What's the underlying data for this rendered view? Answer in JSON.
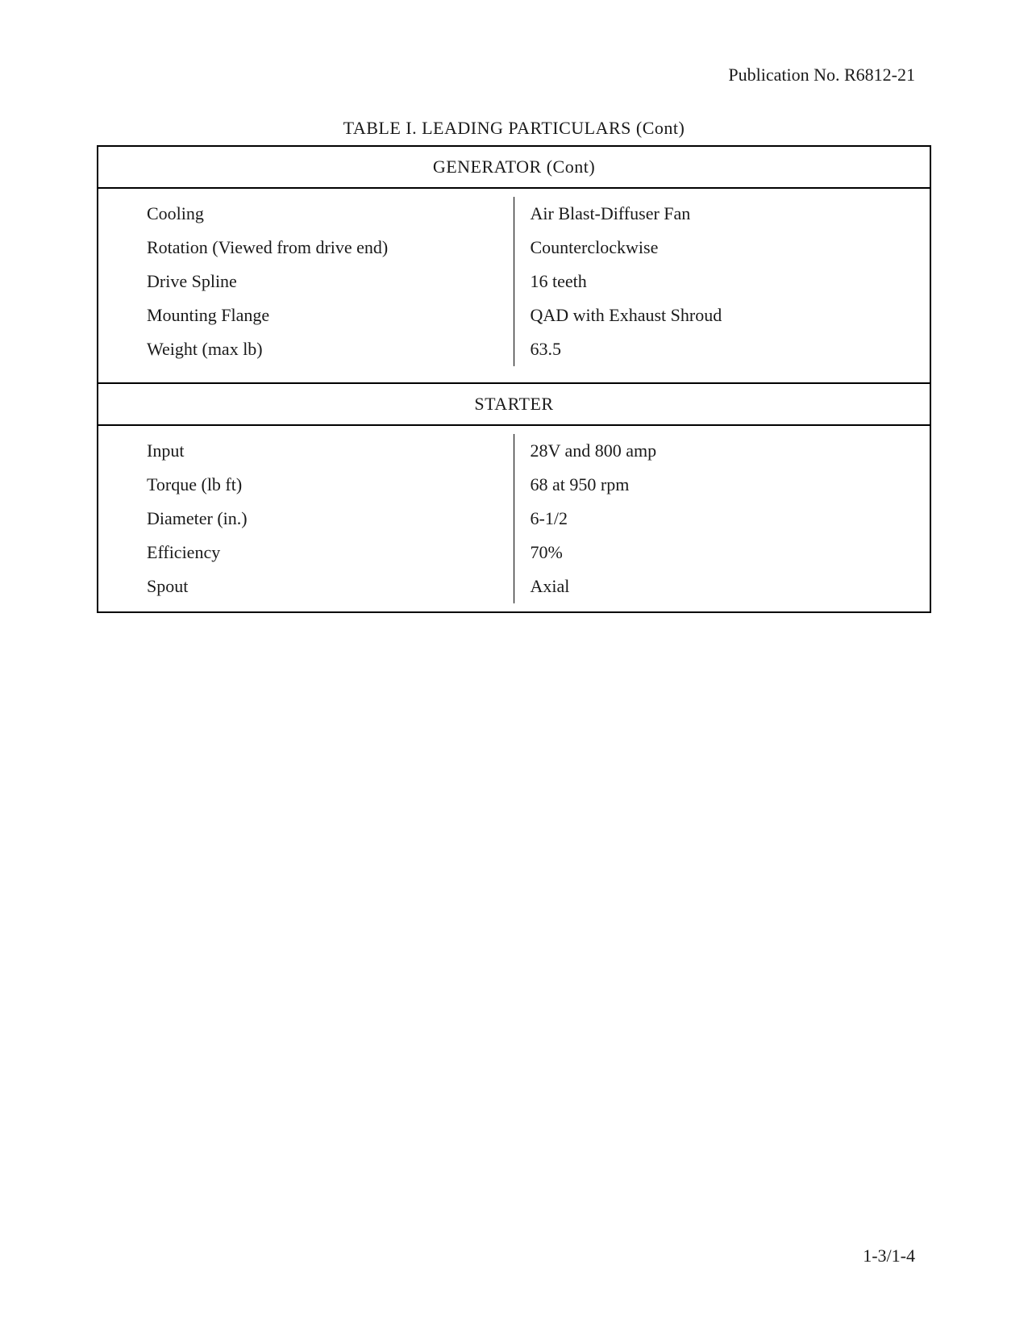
{
  "header": {
    "publication": "Publication No. R6812-21"
  },
  "table": {
    "title": "TABLE I.  LEADING PARTICULARS (Cont)",
    "sections": [
      {
        "header": "GENERATOR (Cont)",
        "rows": [
          {
            "label": "Cooling",
            "value": "Air Blast-Diffuser Fan"
          },
          {
            "label": "Rotation (Viewed from drive end)",
            "value": "Counterclockwise"
          },
          {
            "label": "Drive Spline",
            "value": "16 teeth"
          },
          {
            "label": "Mounting Flange",
            "value": "QAD with Exhaust Shroud"
          },
          {
            "label": "Weight (max lb)",
            "value": "63.5"
          }
        ]
      },
      {
        "header": "STARTER",
        "rows": [
          {
            "label": "Input",
            "value": "28V and 800 amp"
          },
          {
            "label": "Torque (lb ft)",
            "value": "68 at 950 rpm"
          },
          {
            "label": "Diameter (in.)",
            "value": "6-1/2"
          },
          {
            "label": "Efficiency",
            "value": "70%"
          },
          {
            "label": "Spout",
            "value": "Axial"
          }
        ]
      }
    ]
  },
  "footer": {
    "page_number": "1-3/1-4"
  },
  "colors": {
    "background": "#ffffff",
    "text": "#1a1a1a",
    "border": "#000000"
  },
  "typography": {
    "font_family": "Century Schoolbook",
    "body_fontsize": 22
  }
}
